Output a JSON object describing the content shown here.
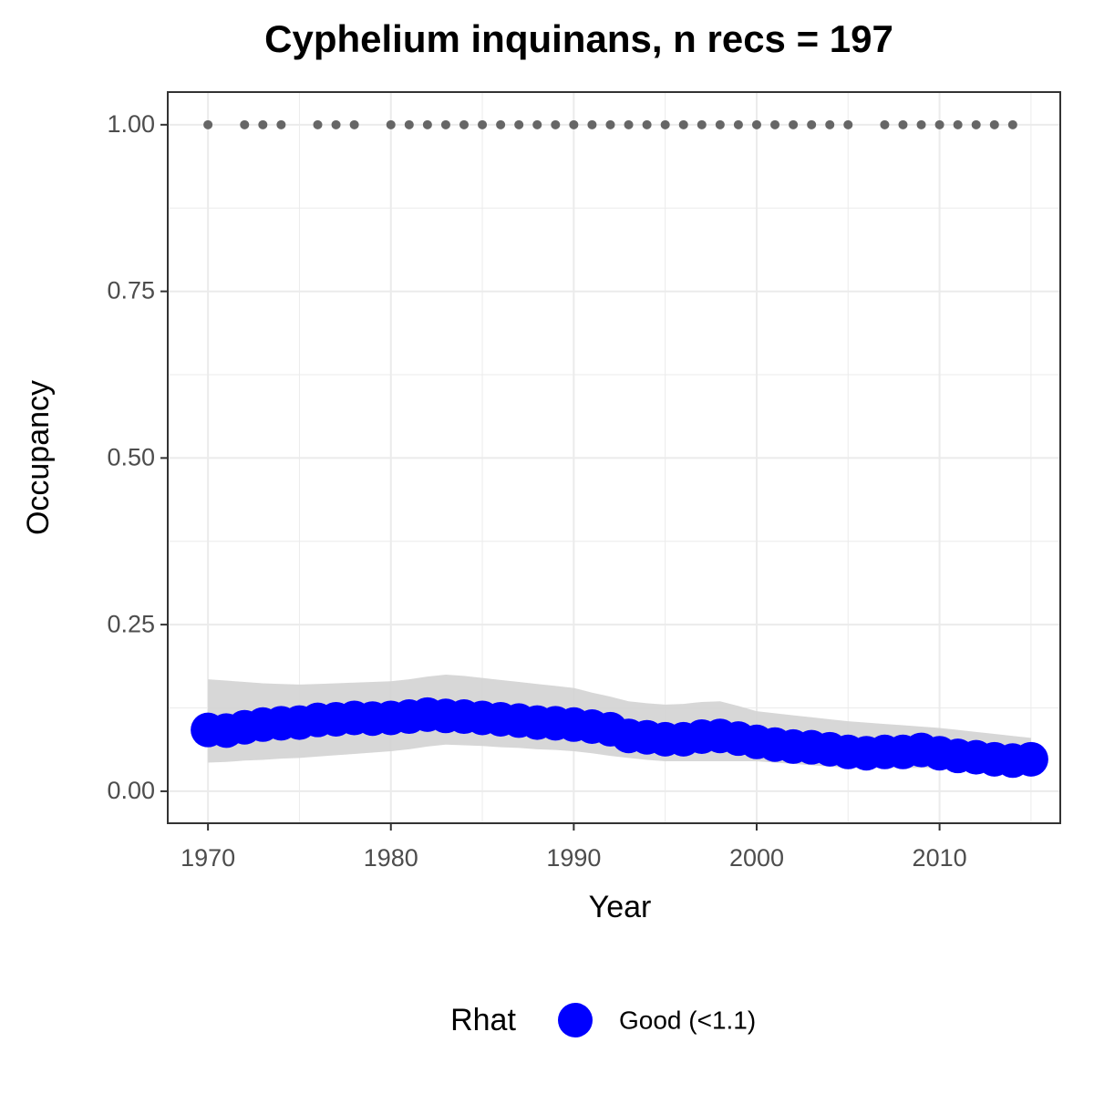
{
  "chart_data": {
    "type": "scatter",
    "title": "Cyphelium inquinans, n recs = 197",
    "x_label": "Year",
    "y_label": "Occupancy",
    "legend_title": "Rhat",
    "legend_position": "bottom",
    "x": [
      1970,
      1971,
      1972,
      1973,
      1974,
      1975,
      1976,
      1977,
      1978,
      1979,
      1980,
      1981,
      1982,
      1983,
      1984,
      1985,
      1986,
      1987,
      1988,
      1989,
      1990,
      1991,
      1992,
      1993,
      1994,
      1995,
      1996,
      1997,
      1998,
      1999,
      2000,
      2001,
      2002,
      2003,
      2004,
      2005,
      2006,
      2007,
      2008,
      2009,
      2010,
      2011,
      2012,
      2013,
      2014,
      2015
    ],
    "series": [
      {
        "name": "Good (<1.1)",
        "color": "#0000ff",
        "values": [
          0.092,
          0.091,
          0.096,
          0.1,
          0.102,
          0.103,
          0.107,
          0.108,
          0.11,
          0.109,
          0.11,
          0.112,
          0.115,
          0.113,
          0.112,
          0.11,
          0.108,
          0.106,
          0.103,
          0.102,
          0.1,
          0.097,
          0.093,
          0.083,
          0.081,
          0.078,
          0.078,
          0.082,
          0.083,
          0.079,
          0.074,
          0.07,
          0.067,
          0.066,
          0.063,
          0.059,
          0.057,
          0.059,
          0.059,
          0.062,
          0.057,
          0.053,
          0.051,
          0.048,
          0.046,
          0.048
        ],
        "lower": [
          0.043,
          0.044,
          0.046,
          0.047,
          0.049,
          0.05,
          0.052,
          0.054,
          0.056,
          0.058,
          0.06,
          0.063,
          0.067,
          0.07,
          0.069,
          0.068,
          0.066,
          0.065,
          0.063,
          0.062,
          0.06,
          0.057,
          0.053,
          0.05,
          0.047,
          0.045,
          0.045,
          0.045,
          0.045,
          0.045,
          0.045,
          0.043,
          0.041,
          0.039,
          0.037,
          0.035,
          0.035,
          0.035,
          0.035,
          0.035,
          0.035,
          0.034,
          0.033,
          0.032,
          0.031,
          0.03
        ],
        "upper": [
          0.168,
          0.166,
          0.164,
          0.162,
          0.161,
          0.16,
          0.161,
          0.162,
          0.163,
          0.164,
          0.165,
          0.168,
          0.172,
          0.175,
          0.173,
          0.17,
          0.167,
          0.164,
          0.161,
          0.158,
          0.155,
          0.148,
          0.142,
          0.135,
          0.132,
          0.13,
          0.131,
          0.134,
          0.135,
          0.128,
          0.12,
          0.117,
          0.114,
          0.111,
          0.108,
          0.105,
          0.103,
          0.101,
          0.099,
          0.097,
          0.095,
          0.092,
          0.089,
          0.086,
          0.083,
          0.08
        ],
        "band_color": "#d3d3d3"
      }
    ],
    "records": {
      "color": "#666666",
      "x": [
        1970,
        1972,
        1973,
        1974,
        1976,
        1977,
        1978,
        1980,
        1981,
        1982,
        1983,
        1984,
        1985,
        1986,
        1987,
        1988,
        1989,
        1990,
        1991,
        1992,
        1993,
        1994,
        1995,
        1996,
        1997,
        1998,
        1999,
        2000,
        2001,
        2002,
        2003,
        2004,
        2005,
        2007,
        2008,
        2009,
        2010,
        2011,
        2012,
        2013,
        2014
      ],
      "values": [
        1,
        1,
        1,
        1,
        1,
        1,
        1,
        1,
        1,
        1,
        1,
        1,
        1,
        1,
        1,
        1,
        1,
        1,
        1,
        1,
        1,
        1,
        1,
        1,
        1,
        1,
        1,
        1,
        1,
        1,
        1,
        1,
        1,
        1,
        1,
        1,
        1,
        1,
        1,
        1,
        1
      ]
    },
    "xlim": [
      1967.8,
      2016.6
    ],
    "xticks": [
      1970,
      1980,
      1990,
      2000,
      2010
    ],
    "xminor": [
      1975,
      1985,
      1995,
      2005,
      2015
    ],
    "ylim": [
      -0.048,
      1.049
    ],
    "yticks": [
      {
        "value": 0,
        "label": "0.00"
      },
      {
        "value": 0.25,
        "label": "0.25"
      },
      {
        "value": 0.5,
        "label": "0.50"
      },
      {
        "value": 0.75,
        "label": "0.75"
      },
      {
        "value": 1,
        "label": "1.00"
      }
    ],
    "yminor": [
      0.125,
      0.375,
      0.625,
      0.875
    ],
    "grid": true
  }
}
